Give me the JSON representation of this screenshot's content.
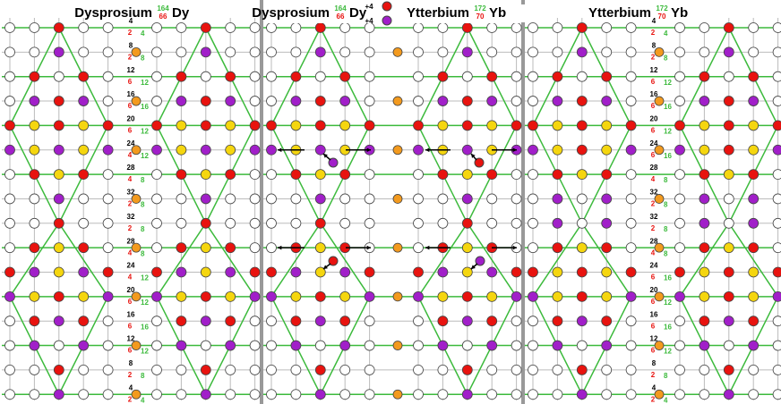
{
  "panels": [
    {
      "title": {
        "name": "Dysprosium",
        "mass": 164,
        "number": 66,
        "symbol": "Dy"
      },
      "shells": [
        {
          "total": 4,
          "a": 2,
          "b": 4
        },
        {
          "total": 8,
          "a": 2,
          "b": 8
        },
        {
          "total": 12,
          "a": 6,
          "b": 12
        },
        {
          "total": 16,
          "a": 6,
          "b": 16
        },
        {
          "total": 20,
          "a": 6,
          "b": 12
        },
        {
          "total": 24,
          "a": 4,
          "b": 12
        },
        {
          "total": 28,
          "a": 4,
          "b": 8
        },
        {
          "total": 32,
          "a": 2,
          "b": 8
        },
        {
          "total": 32,
          "a": 2,
          "b": 8
        },
        {
          "total": 28,
          "a": 4,
          "b": 8
        },
        {
          "total": 24,
          "a": 4,
          "b": 12
        },
        {
          "total": 20,
          "a": 6,
          "b": 12
        },
        {
          "total": 16,
          "a": 6,
          "b": 16
        },
        {
          "total": 12,
          "a": 6,
          "b": 12
        },
        {
          "total": 8,
          "a": 2,
          "b": 8
        },
        {
          "total": 4,
          "a": 2,
          "b": 4
        }
      ]
    },
    {
      "title": {
        "from": {
          "name": "Dysprosium",
          "mass": 164,
          "number": 66,
          "symbol": "Dy"
        },
        "arrow_top": "+4",
        "arrow_bottom": "+4",
        "to": {
          "name": "Ytterbium",
          "mass": 172,
          "number": 70,
          "symbol": "Yb"
        }
      }
    },
    {
      "title": {
        "name": "Ytterbium",
        "mass": 172,
        "number": 70,
        "symbol": "Yb"
      },
      "shells": [
        {
          "total": 4,
          "a": 2,
          "b": 4
        },
        {
          "total": 8,
          "a": 2,
          "b": 8
        },
        {
          "total": 12,
          "a": 6,
          "b": 12
        },
        {
          "total": 16,
          "a": 6,
          "b": 16
        },
        {
          "total": 20,
          "a": 6,
          "b": 12
        },
        {
          "total": 24,
          "a": 6,
          "b": 16
        },
        {
          "total": 28,
          "a": 4,
          "b": 8
        },
        {
          "total": 32,
          "a": 2,
          "b": 8
        },
        {
          "total": 32,
          "a": 2,
          "b": 8
        },
        {
          "total": 28,
          "a": 4,
          "b": 8
        },
        {
          "total": 24,
          "a": 6,
          "b": 16
        },
        {
          "total": 20,
          "a": 6,
          "b": 12
        },
        {
          "total": 16,
          "a": 6,
          "b": 16
        },
        {
          "total": 12,
          "a": 6,
          "b": 12
        },
        {
          "total": 8,
          "a": 2,
          "b": 8
        },
        {
          "total": 4,
          "a": 2,
          "b": 4
        }
      ]
    }
  ]
}
